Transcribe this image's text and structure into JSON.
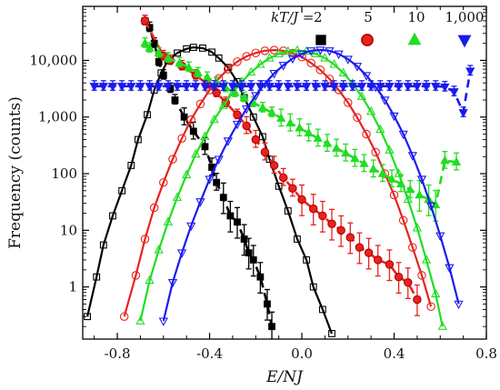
{
  "chart_data": {
    "type": "scatter",
    "xlabel": "E/NJ",
    "ylabel": "Frequency (counts)",
    "xlim": [
      -0.95,
      0.8
    ],
    "ylim": [
      0.12,
      90000
    ],
    "y_scale": "log",
    "grid": false,
    "legend_placement": "top-right",
    "x_ticks": [
      {
        "v": -0.8,
        "label": "-0.8"
      },
      {
        "v": -0.4,
        "label": "-0.4"
      },
      {
        "v": 0.0,
        "label": "0.0"
      },
      {
        "v": 0.4,
        "label": "0.4"
      },
      {
        "v": 0.8,
        "label": "0.8"
      }
    ],
    "y_ticks": [
      {
        "v": 1,
        "label": "1"
      },
      {
        "v": 10,
        "label": "10"
      },
      {
        "v": 100,
        "label": "100"
      },
      {
        "v": 1000,
        "label": "1,000"
      },
      {
        "v": 10000,
        "label": "10,000"
      }
    ],
    "legend_title": "kT/J = ",
    "series": [
      {
        "name": "2",
        "color": "#000000",
        "filled": [
          [
            -0.68,
            50000
          ],
          [
            -0.66,
            38000
          ],
          [
            -0.64,
            20000
          ],
          [
            -0.62,
            9500
          ],
          [
            -0.6,
            5500
          ],
          [
            -0.57,
            3200
          ],
          [
            -0.55,
            2000
          ],
          [
            -0.51,
            1000
          ],
          [
            -0.47,
            560
          ],
          [
            -0.42,
            300
          ],
          [
            -0.39,
            130
          ],
          [
            -0.37,
            70
          ],
          [
            -0.34,
            38
          ],
          [
            -0.31,
            18
          ],
          [
            -0.28,
            14
          ],
          [
            -0.25,
            7
          ],
          [
            -0.23,
            4
          ],
          [
            -0.21,
            3
          ],
          [
            -0.18,
            1.5
          ],
          [
            -0.15,
            0.5
          ],
          [
            -0.13,
            0.2
          ]
        ],
        "open": [
          [
            -0.93,
            0.3
          ],
          [
            -0.89,
            1.5
          ],
          [
            -0.86,
            5.5
          ],
          [
            -0.82,
            18
          ],
          [
            -0.78,
            50
          ],
          [
            -0.74,
            140
          ],
          [
            -0.71,
            400
          ],
          [
            -0.67,
            1100
          ],
          [
            -0.64,
            3000
          ],
          [
            -0.61,
            6000
          ],
          [
            -0.58,
            10000
          ],
          [
            -0.54,
            13500
          ],
          [
            -0.5,
            16000
          ],
          [
            -0.47,
            17000
          ],
          [
            -0.43,
            16500
          ],
          [
            -0.39,
            14000
          ],
          [
            -0.36,
            11000
          ],
          [
            -0.32,
            7500
          ],
          [
            -0.28,
            4200
          ],
          [
            -0.25,
            2200
          ],
          [
            -0.21,
            1000
          ],
          [
            -0.17,
            450
          ],
          [
            -0.14,
            180
          ],
          [
            -0.1,
            60
          ],
          [
            -0.06,
            22
          ],
          [
            -0.02,
            7
          ],
          [
            0.02,
            3
          ],
          [
            0.05,
            1
          ],
          [
            0.09,
            0.4
          ],
          [
            0.13,
            0.15
          ]
        ]
      },
      {
        "name": "5",
        "color": "#e8231e",
        "filled": [
          [
            -0.68,
            50000
          ],
          [
            -0.6,
            12000
          ],
          [
            -0.57,
            10000
          ],
          [
            -0.52,
            8000
          ],
          [
            -0.46,
            5500
          ],
          [
            -0.41,
            3800
          ],
          [
            -0.37,
            2700
          ],
          [
            -0.33,
            1800
          ],
          [
            -0.28,
            1100
          ],
          [
            -0.24,
            700
          ],
          [
            -0.2,
            400
          ],
          [
            -0.16,
            240
          ],
          [
            -0.12,
            140
          ],
          [
            -0.08,
            85
          ],
          [
            -0.04,
            55
          ],
          [
            0.0,
            35
          ],
          [
            0.05,
            24
          ],
          [
            0.09,
            18
          ],
          [
            0.13,
            13
          ],
          [
            0.17,
            10
          ],
          [
            0.21,
            7.5
          ],
          [
            0.25,
            5
          ],
          [
            0.29,
            4
          ],
          [
            0.33,
            3
          ],
          [
            0.38,
            2.5
          ],
          [
            0.42,
            1.5
          ],
          [
            0.46,
            1.2
          ],
          [
            0.5,
            0.6
          ]
        ],
        "open": [
          [
            -0.77,
            0.3
          ],
          [
            -0.72,
            1.6
          ],
          [
            -0.68,
            7
          ],
          [
            -0.64,
            25
          ],
          [
            -0.6,
            70
          ],
          [
            -0.56,
            180
          ],
          [
            -0.52,
            420
          ],
          [
            -0.48,
            900
          ],
          [
            -0.44,
            1700
          ],
          [
            -0.4,
            3000
          ],
          [
            -0.36,
            4800
          ],
          [
            -0.32,
            7000
          ],
          [
            -0.28,
            9500
          ],
          [
            -0.24,
            11800
          ],
          [
            -0.2,
            13500
          ],
          [
            -0.16,
            14800
          ],
          [
            -0.12,
            15200
          ],
          [
            -0.08,
            14800
          ],
          [
            -0.04,
            13500
          ],
          [
            0.0,
            11500
          ],
          [
            0.04,
            9000
          ],
          [
            0.08,
            6800
          ],
          [
            0.12,
            4700
          ],
          [
            0.16,
            3000
          ],
          [
            0.2,
            1800
          ],
          [
            0.24,
            980
          ],
          [
            0.28,
            500
          ],
          [
            0.32,
            240
          ],
          [
            0.36,
            100
          ],
          [
            0.4,
            42
          ],
          [
            0.44,
            15
          ],
          [
            0.48,
            5
          ],
          [
            0.52,
            1.6
          ],
          [
            0.56,
            0.45
          ]
        ]
      },
      {
        "name": "10",
        "color": "#22dd22",
        "filled": [
          [
            -0.68,
            20000
          ],
          [
            -0.66,
            16500
          ],
          [
            -0.62,
            13500
          ],
          [
            -0.58,
            11000
          ],
          [
            -0.53,
            9000
          ],
          [
            -0.49,
            7500
          ],
          [
            -0.45,
            6000
          ],
          [
            -0.41,
            5000
          ],
          [
            -0.37,
            4100
          ],
          [
            -0.33,
            3300
          ],
          [
            -0.29,
            2700
          ],
          [
            -0.25,
            2200
          ],
          [
            -0.21,
            1800
          ],
          [
            -0.17,
            1450
          ],
          [
            -0.13,
            1200
          ],
          [
            -0.09,
            950
          ],
          [
            -0.05,
            780
          ],
          [
            -0.01,
            640
          ],
          [
            0.03,
            520
          ],
          [
            0.07,
            420
          ],
          [
            0.11,
            340
          ],
          [
            0.15,
            280
          ],
          [
            0.19,
            230
          ],
          [
            0.23,
            185
          ],
          [
            0.27,
            150
          ],
          [
            0.31,
            120
          ],
          [
            0.35,
            100
          ],
          [
            0.39,
            80
          ],
          [
            0.43,
            66
          ],
          [
            0.47,
            52
          ],
          [
            0.51,
            42
          ],
          [
            0.55,
            35
          ],
          [
            0.58,
            28
          ],
          [
            0.62,
            170
          ],
          [
            0.67,
            160
          ]
        ],
        "open": [
          [
            -0.7,
            0.25
          ],
          [
            -0.66,
            1.3
          ],
          [
            -0.62,
            4.5
          ],
          [
            -0.58,
            14
          ],
          [
            -0.54,
            38
          ],
          [
            -0.5,
            95
          ],
          [
            -0.46,
            220
          ],
          [
            -0.42,
            450
          ],
          [
            -0.38,
            900
          ],
          [
            -0.34,
            1600
          ],
          [
            -0.3,
            2700
          ],
          [
            -0.26,
            4200
          ],
          [
            -0.22,
            6200
          ],
          [
            -0.18,
            8500
          ],
          [
            -0.14,
            11000
          ],
          [
            -0.1,
            13000
          ],
          [
            -0.06,
            14500
          ],
          [
            -0.02,
            15000
          ],
          [
            0.02,
            14500
          ],
          [
            0.06,
            13000
          ],
          [
            0.1,
            11000
          ],
          [
            0.14,
            8500
          ],
          [
            0.18,
            6000
          ],
          [
            0.22,
            3900
          ],
          [
            0.26,
            2300
          ],
          [
            0.3,
            1250
          ],
          [
            0.34,
            600
          ],
          [
            0.38,
            260
          ],
          [
            0.42,
            100
          ],
          [
            0.46,
            35
          ],
          [
            0.5,
            11
          ],
          [
            0.54,
            3
          ],
          [
            0.58,
            0.75
          ],
          [
            0.61,
            0.2
          ]
        ]
      },
      {
        "name": "1,000",
        "color": "#1a1aee",
        "filled": [
          [
            -0.9,
            3500
          ],
          [
            -0.86,
            3500
          ],
          [
            -0.82,
            3500
          ],
          [
            -0.78,
            3500
          ],
          [
            -0.74,
            3500
          ],
          [
            -0.7,
            3500
          ],
          [
            -0.66,
            3500
          ],
          [
            -0.62,
            3500
          ],
          [
            -0.58,
            3500
          ],
          [
            -0.54,
            3500
          ],
          [
            -0.5,
            3500
          ],
          [
            -0.46,
            3500
          ],
          [
            -0.42,
            3500
          ],
          [
            -0.38,
            3500
          ],
          [
            -0.34,
            3500
          ],
          [
            -0.3,
            3500
          ],
          [
            -0.26,
            3500
          ],
          [
            -0.22,
            3500
          ],
          [
            -0.18,
            3500
          ],
          [
            -0.14,
            3500
          ],
          [
            -0.1,
            3500
          ],
          [
            -0.06,
            3500
          ],
          [
            -0.02,
            3500
          ],
          [
            0.02,
            3500
          ],
          [
            0.06,
            3500
          ],
          [
            0.1,
            3500
          ],
          [
            0.14,
            3500
          ],
          [
            0.18,
            3500
          ],
          [
            0.22,
            3500
          ],
          [
            0.26,
            3500
          ],
          [
            0.3,
            3500
          ],
          [
            0.34,
            3500
          ],
          [
            0.38,
            3500
          ],
          [
            0.42,
            3500
          ],
          [
            0.46,
            3500
          ],
          [
            0.5,
            3500
          ],
          [
            0.54,
            3500
          ],
          [
            0.58,
            3500
          ],
          [
            0.62,
            3400
          ],
          [
            0.66,
            2800
          ],
          [
            0.7,
            1200
          ],
          [
            0.73,
            6500
          ]
        ],
        "open": [
          [
            -0.6,
            0.25
          ],
          [
            -0.56,
            1.2
          ],
          [
            -0.52,
            4
          ],
          [
            -0.48,
            12
          ],
          [
            -0.44,
            32
          ],
          [
            -0.4,
            80
          ],
          [
            -0.36,
            180
          ],
          [
            -0.32,
            380
          ],
          [
            -0.28,
            750
          ],
          [
            -0.24,
            1400
          ],
          [
            -0.2,
            2400
          ],
          [
            -0.16,
            3900
          ],
          [
            -0.12,
            5900
          ],
          [
            -0.08,
            8200
          ],
          [
            -0.04,
            10800
          ],
          [
            0.0,
            13000
          ],
          [
            0.04,
            14800
          ],
          [
            0.08,
            15300
          ],
          [
            0.12,
            14800
          ],
          [
            0.16,
            13000
          ],
          [
            0.2,
            10500
          ],
          [
            0.24,
            7900
          ],
          [
            0.28,
            5400
          ],
          [
            0.32,
            3400
          ],
          [
            0.36,
            2000
          ],
          [
            0.4,
            1050
          ],
          [
            0.44,
            500
          ],
          [
            0.48,
            210
          ],
          [
            0.52,
            80
          ],
          [
            0.56,
            27
          ],
          [
            0.6,
            8
          ],
          [
            0.64,
            2.2
          ],
          [
            0.68,
            0.5
          ]
        ]
      }
    ]
  }
}
